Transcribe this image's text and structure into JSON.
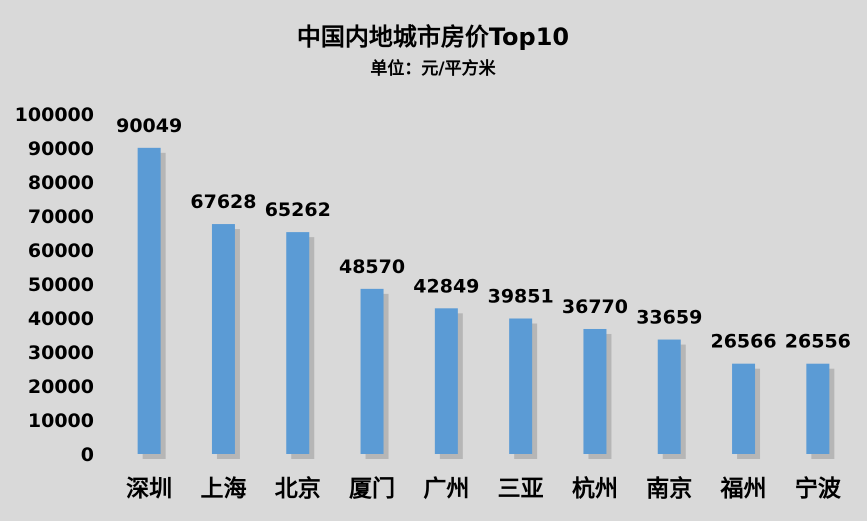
{
  "chart_data": {
    "type": "bar",
    "title": "中国内地城市房价Top10",
    "subtitle": "单位：元/平方米",
    "xlabel": "",
    "ylabel": "",
    "categories": [
      "深圳",
      "上海",
      "北京",
      "厦门",
      "广州",
      "三亚",
      "杭州",
      "南京",
      "福州",
      "宁波"
    ],
    "values": [
      90049,
      67628,
      65262,
      48570,
      42849,
      39851,
      36770,
      33659,
      26566,
      26556
    ],
    "data_labels": [
      "90049",
      "67628",
      "65262",
      "48570",
      "42849",
      "39851",
      "36770",
      "33659",
      "26566",
      "26556"
    ],
    "ylim": [
      0,
      100000
    ],
    "yticks": [
      0,
      10000,
      20000,
      30000,
      40000,
      50000,
      60000,
      70000,
      80000,
      90000,
      100000
    ],
    "ytick_labels": [
      "0",
      "10000",
      "20000",
      "30000",
      "40000",
      "50000",
      "60000",
      "70000",
      "80000",
      "90000",
      "100000"
    ],
    "grid": false,
    "legend": "none",
    "colors": {
      "bar": "#5b9bd5",
      "bar_shadow": "#a6a6a6",
      "background": "#d9d9d9",
      "text": "#000000"
    }
  }
}
